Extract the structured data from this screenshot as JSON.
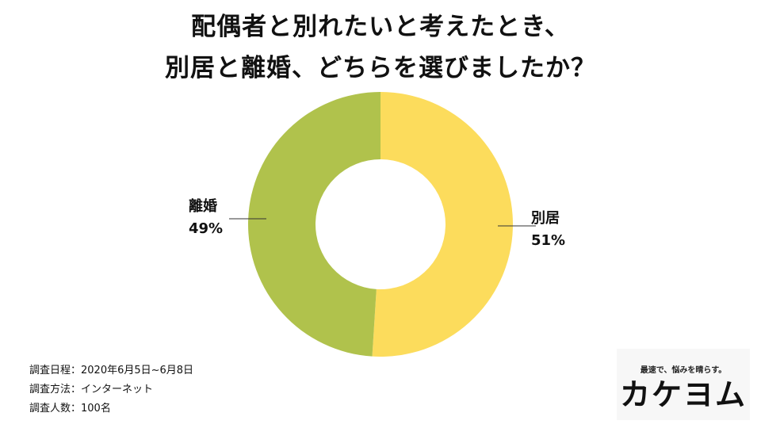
{
  "title": {
    "line1": "配偶者と別れたいと考えたとき、",
    "line2": "別居と離婚、どちらを選びましたか？"
  },
  "chart_data": {
    "type": "pie",
    "donut": true,
    "title": "配偶者と別れたいと考えたとき、別居と離婚、どちらを選びましたか？",
    "series": [
      {
        "name": "別居",
        "value": 51,
        "value_label": "51%",
        "color": "#fcdc5c"
      },
      {
        "name": "離婚",
        "value": 49,
        "value_label": "49%",
        "color": "#b0c24c"
      }
    ]
  },
  "labels": {
    "right": {
      "name": "別居",
      "value": "51%"
    },
    "left": {
      "name": "離婚",
      "value": "49%"
    }
  },
  "survey": {
    "period": "調査日程：2020年6月5日~6月8日",
    "method": "調査方法：インターネット",
    "count": "調査人数：100名"
  },
  "brand": {
    "tagline": "最速で、悩みを晴らす。",
    "logo": "カケヨム"
  }
}
